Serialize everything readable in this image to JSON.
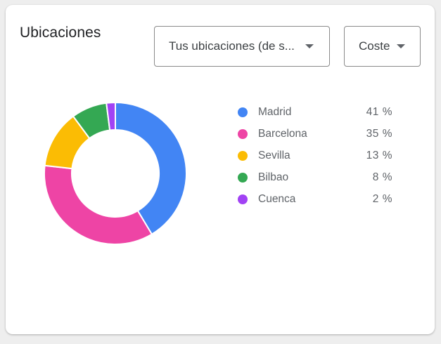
{
  "card": {
    "title": "Ubicaciones"
  },
  "filters": {
    "location_label": "Tus ubicaciones (de s...",
    "metric_label": "Coste"
  },
  "chart_data": {
    "type": "pie",
    "title": "",
    "categories": [
      "Madrid",
      "Barcelona",
      "Sevilla",
      "Bilbao",
      "Cuenca"
    ],
    "values": [
      41,
      35,
      13,
      8,
      2
    ],
    "value_labels": [
      "41 %",
      "35 %",
      "13 %",
      "8 %",
      "2 %"
    ],
    "colors": [
      "#4285f4",
      "#ee44a5",
      "#fbbc04",
      "#34a853",
      "#a142f4"
    ],
    "donut": true,
    "legend_position": "right"
  }
}
